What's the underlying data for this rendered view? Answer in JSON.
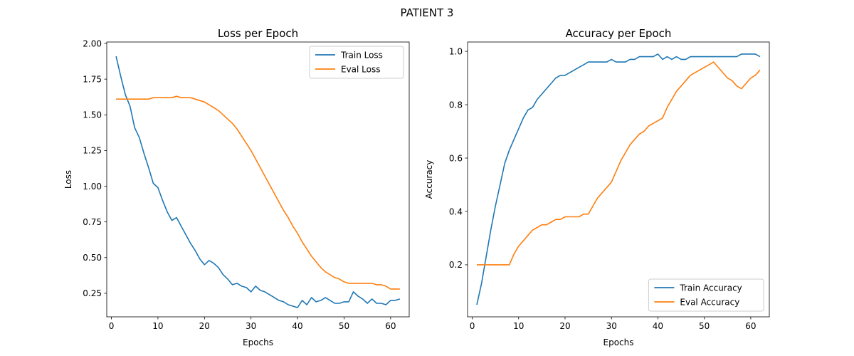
{
  "figure": {
    "title": "PATIENT 3"
  },
  "colors": {
    "train": "#1f77b4",
    "eval": "#ff7f0e",
    "axis": "#000000",
    "background": "#ffffff"
  },
  "chart_data": [
    {
      "id": "loss",
      "type": "line",
      "title": "Loss per Epoch",
      "xlabel": "Epochs",
      "ylabel": "Loss",
      "xlim": [
        -1.0,
        64.0
      ],
      "ylim": [
        0.085,
        2.01
      ],
      "xticks": [
        0,
        10,
        20,
        30,
        40,
        50,
        60
      ],
      "xtick_labels": [
        "0",
        "10",
        "20",
        "30",
        "40",
        "50",
        "60"
      ],
      "yticks": [
        0.25,
        0.5,
        0.75,
        1.0,
        1.25,
        1.5,
        1.75,
        2.0
      ],
      "ytick_labels": [
        "0.25",
        "0.50",
        "0.75",
        "1.00",
        "1.25",
        "1.50",
        "1.75",
        "2.00"
      ],
      "grid": false,
      "legend_position": "top-right",
      "x": [
        1,
        2,
        3,
        4,
        5,
        6,
        7,
        8,
        9,
        10,
        11,
        12,
        13,
        14,
        15,
        16,
        17,
        18,
        19,
        20,
        21,
        22,
        23,
        24,
        25,
        26,
        27,
        28,
        29,
        30,
        31,
        32,
        33,
        34,
        35,
        36,
        37,
        38,
        39,
        40,
        41,
        42,
        43,
        44,
        45,
        46,
        47,
        48,
        49,
        50,
        51,
        52,
        53,
        54,
        55,
        56,
        57,
        58,
        59,
        60,
        61,
        62
      ],
      "series": [
        {
          "name": "Train Loss",
          "color_key": "train",
          "values": [
            1.91,
            1.77,
            1.64,
            1.56,
            1.41,
            1.34,
            1.23,
            1.13,
            1.02,
            0.99,
            0.9,
            0.82,
            0.76,
            0.78,
            0.72,
            0.66,
            0.6,
            0.55,
            0.49,
            0.45,
            0.48,
            0.46,
            0.43,
            0.38,
            0.35,
            0.31,
            0.32,
            0.3,
            0.29,
            0.26,
            0.3,
            0.27,
            0.26,
            0.24,
            0.22,
            0.2,
            0.19,
            0.17,
            0.16,
            0.15,
            0.2,
            0.17,
            0.22,
            0.19,
            0.2,
            0.22,
            0.2,
            0.18,
            0.18,
            0.19,
            0.19,
            0.26,
            0.23,
            0.21,
            0.18,
            0.21,
            0.18,
            0.18,
            0.17,
            0.2,
            0.2,
            0.21
          ]
        },
        {
          "name": "Eval Loss",
          "color_key": "eval",
          "values": [
            1.61,
            1.61,
            1.61,
            1.61,
            1.61,
            1.61,
            1.61,
            1.61,
            1.62,
            1.62,
            1.62,
            1.62,
            1.62,
            1.63,
            1.62,
            1.62,
            1.62,
            1.61,
            1.6,
            1.59,
            1.57,
            1.55,
            1.53,
            1.5,
            1.47,
            1.44,
            1.4,
            1.35,
            1.3,
            1.25,
            1.19,
            1.13,
            1.07,
            1.01,
            0.95,
            0.89,
            0.83,
            0.78,
            0.72,
            0.67,
            0.61,
            0.56,
            0.51,
            0.47,
            0.43,
            0.4,
            0.38,
            0.36,
            0.35,
            0.33,
            0.32,
            0.32,
            0.32,
            0.32,
            0.32,
            0.32,
            0.31,
            0.31,
            0.3,
            0.28,
            0.28,
            0.28
          ]
        }
      ]
    },
    {
      "id": "accuracy",
      "type": "line",
      "title": "Accuracy per Epoch",
      "xlabel": "Epochs",
      "ylabel": "Accuracy",
      "xlim": [
        -1.0,
        64.0
      ],
      "ylim": [
        0.005,
        1.035
      ],
      "xticks": [
        0,
        10,
        20,
        30,
        40,
        50,
        60
      ],
      "xtick_labels": [
        "0",
        "10",
        "20",
        "30",
        "40",
        "50",
        "60"
      ],
      "yticks": [
        0.2,
        0.4,
        0.6,
        0.8,
        1.0
      ],
      "ytick_labels": [
        "0.2",
        "0.4",
        "0.6",
        "0.8",
        "1.0"
      ],
      "grid": false,
      "legend_position": "bottom-right",
      "x": [
        1,
        2,
        3,
        4,
        5,
        6,
        7,
        8,
        9,
        10,
        11,
        12,
        13,
        14,
        15,
        16,
        17,
        18,
        19,
        20,
        21,
        22,
        23,
        24,
        25,
        26,
        27,
        28,
        29,
        30,
        31,
        32,
        33,
        34,
        35,
        36,
        37,
        38,
        39,
        40,
        41,
        42,
        43,
        44,
        45,
        46,
        47,
        48,
        49,
        50,
        51,
        52,
        53,
        54,
        55,
        56,
        57,
        58,
        59,
        60,
        61,
        62
      ],
      "series": [
        {
          "name": "Train Accuracy",
          "color_key": "train",
          "values": [
            0.05,
            0.13,
            0.23,
            0.33,
            0.42,
            0.5,
            0.58,
            0.63,
            0.67,
            0.71,
            0.75,
            0.78,
            0.79,
            0.82,
            0.84,
            0.86,
            0.88,
            0.9,
            0.91,
            0.91,
            0.92,
            0.93,
            0.94,
            0.95,
            0.96,
            0.96,
            0.96,
            0.96,
            0.96,
            0.97,
            0.96,
            0.96,
            0.96,
            0.97,
            0.97,
            0.98,
            0.98,
            0.98,
            0.98,
            0.99,
            0.97,
            0.98,
            0.97,
            0.98,
            0.97,
            0.97,
            0.98,
            0.98,
            0.98,
            0.98,
            0.98,
            0.98,
            0.98,
            0.98,
            0.98,
            0.98,
            0.98,
            0.99,
            0.99,
            0.99,
            0.99,
            0.98
          ]
        },
        {
          "name": "Eval Accuracy",
          "color_key": "eval",
          "values": [
            0.2,
            0.2,
            0.2,
            0.2,
            0.2,
            0.2,
            0.2,
            0.2,
            0.24,
            0.27,
            0.29,
            0.31,
            0.33,
            0.34,
            0.35,
            0.35,
            0.36,
            0.37,
            0.37,
            0.38,
            0.38,
            0.38,
            0.38,
            0.39,
            0.39,
            0.42,
            0.45,
            0.47,
            0.49,
            0.51,
            0.55,
            0.59,
            0.62,
            0.65,
            0.67,
            0.69,
            0.7,
            0.72,
            0.73,
            0.74,
            0.75,
            0.79,
            0.82,
            0.85,
            0.87,
            0.89,
            0.91,
            0.92,
            0.93,
            0.94,
            0.95,
            0.96,
            0.94,
            0.92,
            0.9,
            0.89,
            0.87,
            0.86,
            0.88,
            0.9,
            0.91,
            0.93
          ]
        }
      ]
    }
  ]
}
